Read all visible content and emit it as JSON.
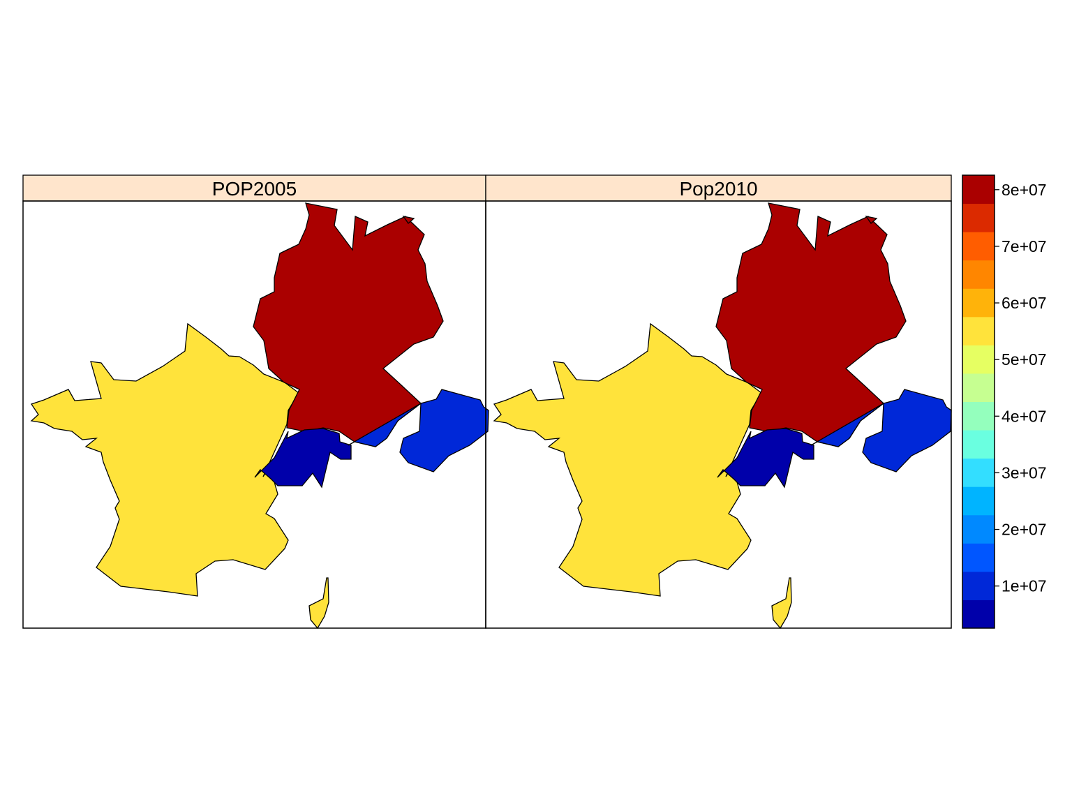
{
  "panels": [
    {
      "strip": "POP2005",
      "regions": [
        {
          "id": "france",
          "value_color": "#FFE33B"
        },
        {
          "id": "germany",
          "value_color": "#AA0000"
        },
        {
          "id": "switzerland",
          "value_color": "#0000AA"
        },
        {
          "id": "austria",
          "value_color": "#0028D8"
        }
      ]
    },
    {
      "strip": "Pop2010",
      "regions": [
        {
          "id": "france",
          "value_color": "#FFE33B"
        },
        {
          "id": "germany",
          "value_color": "#AA0000"
        },
        {
          "id": "switzerland",
          "value_color": "#0000AA"
        },
        {
          "id": "austria",
          "value_color": "#0028D8"
        }
      ]
    }
  ],
  "strip_background": "#FFE5CC",
  "colorkey": {
    "colors": [
      "#0000AA",
      "#0028D8",
      "#0056FF",
      "#0089FF",
      "#00B4FF",
      "#33DEFF",
      "#6AFFE0",
      "#94FFBD",
      "#C6FF91",
      "#E6FF62",
      "#FFE33B",
      "#FFB30A",
      "#FF8600",
      "#FF5D00",
      "#DB2A00",
      "#AA0000"
    ],
    "labels": [
      "1e+07",
      "2e+07",
      "3e+07",
      "4e+07",
      "5e+07",
      "6e+07",
      "7e+07",
      "8e+07"
    ]
  }
}
